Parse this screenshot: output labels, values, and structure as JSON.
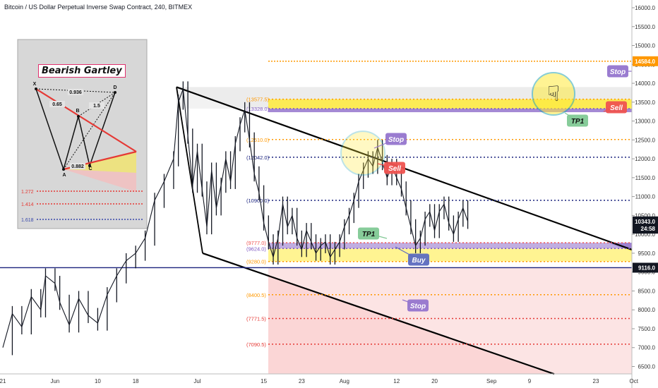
{
  "title": "Bitcoin / US Dollar Perpetual Inverse Swap Contract, 240, BITMEX",
  "colors": {
    "candle": "#131722",
    "yellow": "#ffeb3b",
    "purple": "#7e57c2",
    "red_zone": "#f8bbbb",
    "blue_line": "#1a237e",
    "orange": "#ff9800",
    "red": "#e53935",
    "gray_zone": "#c8c8c8",
    "stop_label": "#9575cd",
    "sell_label": "#ef5350",
    "tp_label": "#81c995",
    "buy_label": "#5c6bc0",
    "price_badge": "#131722",
    "stop_badge": "#ff9800"
  },
  "chart_data": {
    "type": "candlestick",
    "ylim": [
      6300,
      16300
    ],
    "y_ticks": [
      6500,
      7000,
      7500,
      8000,
      8500,
      9000,
      9500,
      10000,
      10500,
      11000,
      11500,
      12000,
      12500,
      13000,
      13500,
      14000,
      14500,
      15000,
      15500,
      16000
    ],
    "y_tick_labels": [
      "6500.0",
      "7000.0",
      "7500.0",
      "8000.0",
      "8500.0",
      "9000.0",
      "9500.0",
      "10000.0",
      "10500.0",
      "11000.0",
      "11500.0",
      "12000.0",
      "12500.0",
      "13000.0",
      "13500.0",
      "14000.0",
      "14500.0",
      "15000.0",
      "15500.0",
      "16000.0"
    ],
    "x_labels": [
      {
        "label": "21",
        "day": 0
      },
      {
        "label": "Jun",
        "day": 11
      },
      {
        "label": "10",
        "day": 20
      },
      {
        "label": "18",
        "day": 28
      },
      {
        "label": "Jul",
        "day": 41
      },
      {
        "label": "15",
        "day": 55
      },
      {
        "label": "23",
        "day": 63
      },
      {
        "label": "Aug",
        "day": 72
      },
      {
        "label": "12",
        "day": 83
      },
      {
        "label": "20",
        "day": 91
      },
      {
        "label": "Sep",
        "day": 103
      },
      {
        "label": "9",
        "day": 111
      },
      {
        "label": "23",
        "day": 125
      },
      {
        "label": "Oct",
        "day": 133
      }
    ],
    "price_path": [
      [
        0,
        7000
      ],
      [
        2,
        7900
      ],
      [
        4,
        7550
      ],
      [
        6,
        8350
      ],
      [
        8,
        8000
      ],
      [
        9,
        8900
      ],
      [
        11,
        8700
      ],
      [
        12,
        8200
      ],
      [
        14,
        7600
      ],
      [
        16,
        8300
      ],
      [
        18,
        7850
      ],
      [
        20,
        7650
      ],
      [
        22,
        8400
      ],
      [
        24,
        8900
      ],
      [
        26,
        9300
      ],
      [
        28,
        9500
      ],
      [
        30,
        9900
      ],
      [
        32,
        10900
      ],
      [
        34,
        11400
      ],
      [
        36,
        12000
      ],
      [
        37,
        13500
      ],
      [
        38,
        13850
      ],
      [
        39,
        12600
      ],
      [
        40,
        11300
      ],
      [
        41,
        12200
      ],
      [
        42,
        11200
      ],
      [
        43,
        10200
      ],
      [
        44,
        11700
      ],
      [
        45,
        10700
      ],
      [
        46,
        11300
      ],
      [
        47,
        12000
      ],
      [
        48,
        11400
      ],
      [
        49,
        12400
      ],
      [
        50,
        12900
      ],
      [
        51,
        13300
      ],
      [
        52,
        12500
      ],
      [
        53,
        11600
      ],
      [
        54,
        11100
      ],
      [
        55,
        10300
      ],
      [
        56,
        9800
      ],
      [
        57,
        9400
      ],
      [
        58,
        9900
      ],
      [
        59,
        10800
      ],
      [
        60,
        10200
      ],
      [
        61,
        10500
      ],
      [
        62,
        9900
      ],
      [
        63,
        9600
      ],
      [
        64,
        10100
      ],
      [
        65,
        9800
      ],
      [
        66,
        9500
      ],
      [
        67,
        9700
      ],
      [
        68,
        9800
      ],
      [
        69,
        9400
      ],
      [
        70,
        9600
      ],
      [
        71,
        9800
      ],
      [
        72,
        10200
      ],
      [
        73,
        10500
      ],
      [
        74,
        10900
      ],
      [
        75,
        11400
      ],
      [
        76,
        11700
      ],
      [
        77,
        12000
      ],
      [
        78,
        11800
      ],
      [
        79,
        12300
      ],
      [
        80,
        11900
      ],
      [
        81,
        11500
      ],
      [
        82,
        11800
      ],
      [
        83,
        11500
      ],
      [
        84,
        11200
      ],
      [
        85,
        10700
      ],
      [
        86,
        10200
      ],
      [
        87,
        9700
      ],
      [
        88,
        9900
      ],
      [
        89,
        10400
      ],
      [
        90,
        10600
      ],
      [
        91,
        10100
      ],
      [
        92,
        10600
      ],
      [
        93,
        10800
      ],
      [
        94,
        10300
      ],
      [
        95,
        10000
      ],
      [
        96,
        10400
      ],
      [
        97,
        10700
      ],
      [
        98,
        10343
      ]
    ],
    "levels": [
      {
        "label": "(13577.5)",
        "value": 13577.5,
        "color": "#ff9800"
      },
      {
        "label": "(13328.0)",
        "value": 13328,
        "color": "#7e57c2"
      },
      {
        "label": "(12510.0)",
        "value": 12510,
        "color": "#ff9800"
      },
      {
        "label": "(12042.0)",
        "value": 12042,
        "color": "#1a237e"
      },
      {
        "label": "(10900.0)",
        "value": 10900,
        "color": "#1a237e"
      },
      {
        "label": "(9777.0)",
        "value": 9777,
        "color": "#ef5350"
      },
      {
        "label": "(9624.0)",
        "value": 9624,
        "color": "#7e57c2"
      },
      {
        "label": "(9280.0)",
        "value": 9280,
        "color": "#ff9800"
      },
      {
        "label": "(8400.5)",
        "value": 8400.5,
        "color": "#ff9800"
      },
      {
        "label": "(7771.5)",
        "value": 7771.5,
        "color": "#e53935"
      },
      {
        "label": "(7090.5)",
        "value": 7090.5,
        "color": "#e53935"
      }
    ],
    "annotations": [
      {
        "text": "Stop",
        "kind": "stop"
      },
      {
        "text": "Sell",
        "kind": "sell"
      },
      {
        "text": "TP1",
        "kind": "tp"
      },
      {
        "text": "Stop",
        "kind": "stop"
      },
      {
        "text": "Sell",
        "kind": "sell"
      },
      {
        "text": "TP1",
        "kind": "tp"
      },
      {
        "text": "Buy",
        "kind": "buy"
      },
      {
        "text": "Stop",
        "kind": "stop"
      }
    ],
    "price_badges": [
      {
        "text": "14584.0",
        "value": 14584,
        "kind": "stop"
      },
      {
        "text": "10343.0",
        "value": 10343,
        "kind": "price"
      },
      {
        "text": "24:58",
        "value": 10150,
        "kind": "price"
      },
      {
        "text": "9116.0",
        "value": 9116,
        "kind": "price"
      }
    ],
    "hand_icon": "pointing-down-hand-icon"
  },
  "inset": {
    "title": "Bearish Gartley",
    "points": [
      "X",
      "A",
      "B",
      "C",
      "D"
    ],
    "ratios": [
      "0.936",
      "0.65",
      "0.882",
      "1.5"
    ],
    "fib_levels": [
      "1.272",
      "1.414",
      "1.618"
    ]
  }
}
